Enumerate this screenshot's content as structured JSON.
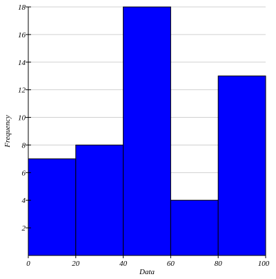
{
  "chart_data": {
    "type": "bar",
    "histogram": true,
    "bins": [
      {
        "start": 0,
        "end": 20,
        "value": 7
      },
      {
        "start": 20,
        "end": 40,
        "value": 8
      },
      {
        "start": 40,
        "end": 60,
        "value": 18
      },
      {
        "start": 60,
        "end": 80,
        "value": 4
      },
      {
        "start": 80,
        "end": 100,
        "value": 13
      }
    ],
    "xlabel": "Data",
    "ylabel": "Frequency",
    "xlim": [
      0,
      100
    ],
    "ylim": [
      0,
      18
    ],
    "xticks": [
      0,
      20,
      40,
      60,
      80,
      100
    ],
    "yticks": [
      2,
      4,
      6,
      8,
      10,
      12,
      14,
      16,
      18
    ],
    "grid": "horizontal",
    "colors": {
      "bar_fill": "#0000ff",
      "bar_stroke": "#000000",
      "grid": "#d0d0d0",
      "axis": "#000000"
    }
  }
}
